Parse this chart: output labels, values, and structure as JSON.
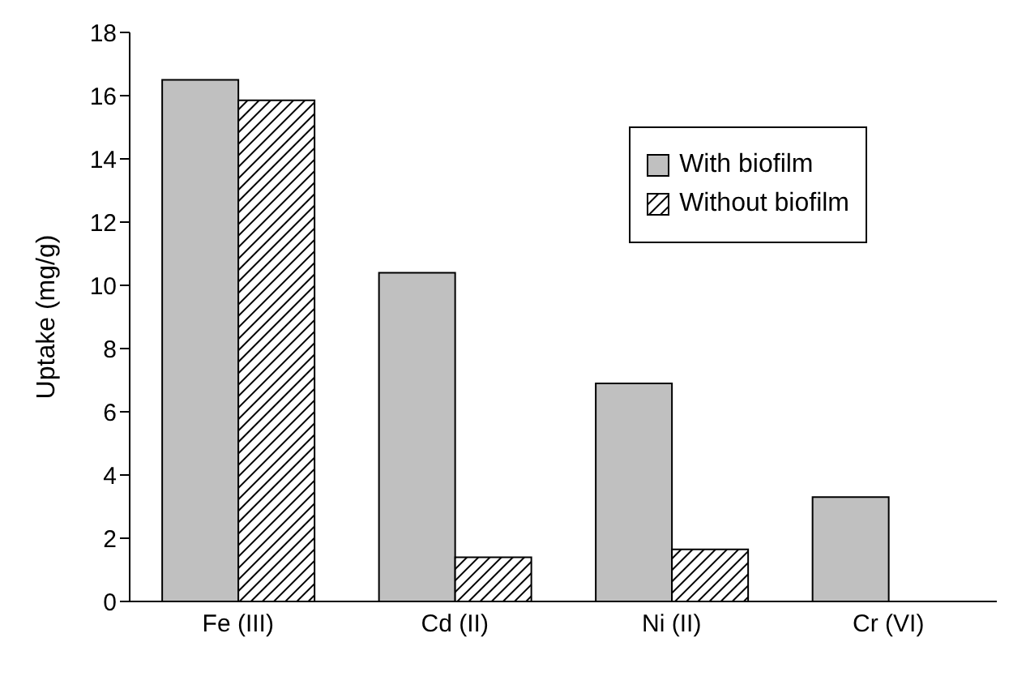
{
  "chart_data": {
    "type": "bar",
    "ylabel": "Uptake (mg/g)",
    "categories": [
      "Fe (III)",
      "Cd (II)",
      "Ni (II)",
      "Cr (VI)"
    ],
    "series": [
      {
        "name": "With biofilm",
        "color": "#c0c0c0",
        "values": [
          16.5,
          10.4,
          6.9,
          3.3
        ]
      },
      {
        "name": "Without biofilm",
        "color": "#000000",
        "values": [
          15.85,
          1.4,
          1.65,
          null
        ]
      }
    ],
    "ylim": [
      0,
      18
    ],
    "yticks": [
      0,
      2,
      4,
      6,
      8,
      10,
      12,
      14,
      16,
      18
    ],
    "grid": false,
    "legend": "top right"
  }
}
